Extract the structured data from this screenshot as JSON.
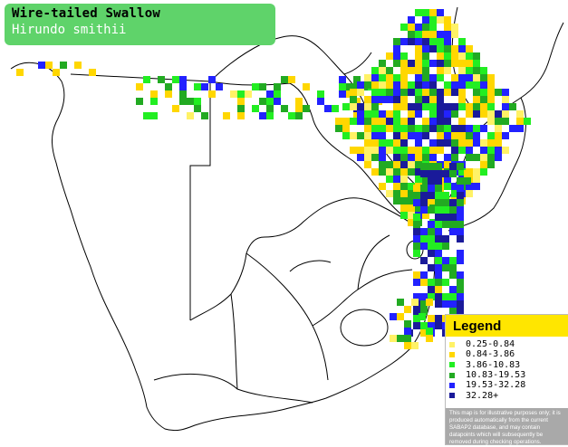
{
  "title": {
    "common_name": "Wire-tailed Swallow",
    "scientific_name": "Hirundo smithii"
  },
  "legend": {
    "heading": "Legend",
    "items": [
      {
        "label": "0.25-0.84",
        "color": "#fff266"
      },
      {
        "label": "0.84-3.86",
        "color": "#ffd700"
      },
      {
        "label": "3.86-10.83",
        "color": "#22ee22"
      },
      {
        "label": "10.83-19.53",
        "color": "#22aa22"
      },
      {
        "label": "19.53-32.28",
        "color": "#2222ff"
      },
      {
        "label": "32.28+",
        "color": "#1a1a9a"
      }
    ],
    "note": "This map is for illustrative purposes only; it is produced automatically from the current SABAP2 database, and may contain datapoints which will subsequently be removed during checking operations."
  },
  "map_style": {
    "land": "#ffffff",
    "border": "#000000"
  }
}
